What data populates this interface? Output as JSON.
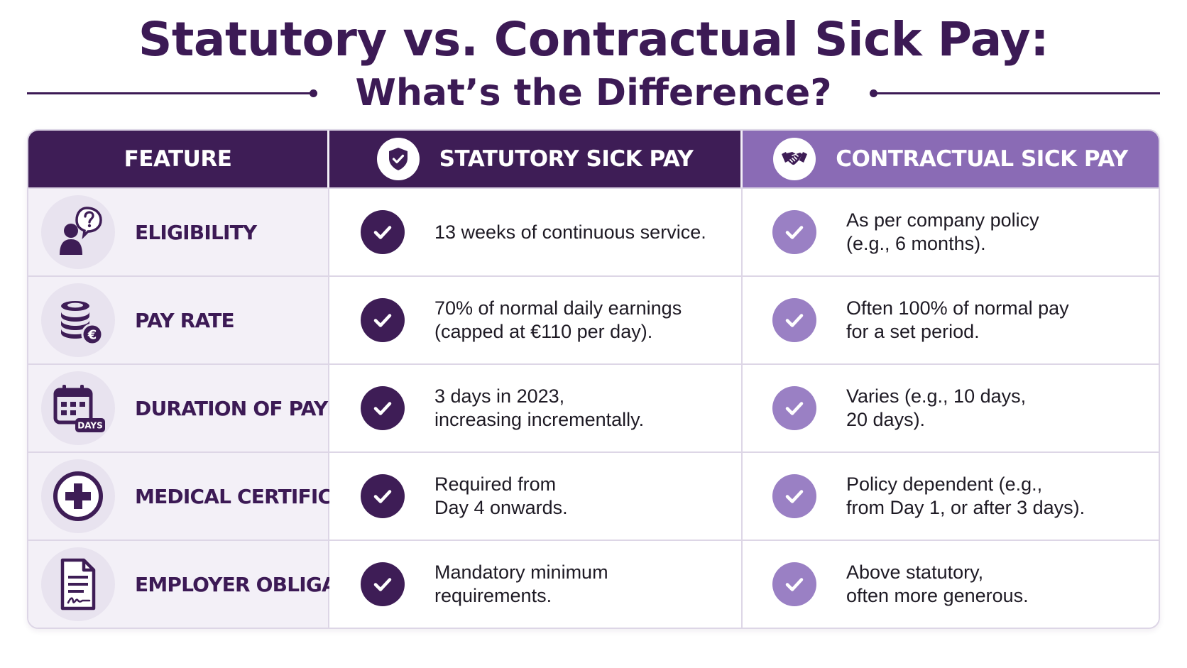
{
  "title": "Statutory vs. Contractual Sick Pay:",
  "subtitle": "What’s the Difference?",
  "headers": {
    "feature": "FEATURE",
    "statutory": "STATUTORY SICK PAY",
    "contractual": "CONTRACTUAL SICK PAY"
  },
  "header_icons": {
    "statutory": "shield-check-icon",
    "contractual": "handshake-icon"
  },
  "rows": [
    {
      "feature": "ELIGIBILITY",
      "icon": "person-question-icon",
      "statutory": "13 weeks of continuous service.",
      "contractual": "As per company policy\n(e.g., 6 months)."
    },
    {
      "feature": "PAY RATE",
      "icon": "coins-euro-icon",
      "statutory": "70% of normal daily earnings\n(capped at €110 per day).",
      "contractual": "Often 100% of normal pay\nfor a set period."
    },
    {
      "feature": "DURATION OF PAYMENT",
      "icon": "calendar-days-icon",
      "icon_label": "DAYS",
      "statutory": "3 days in 2023,\nincreasing incrementally.",
      "contractual": "Varies (e.g., 10 days,\n20 days)."
    },
    {
      "feature": "MEDICAL CERTIFICATE",
      "icon": "medical-cross-icon",
      "statutory": "Required from\nDay 4 onwards.",
      "contractual": "Policy dependent (e.g.,\nfrom Day 1, or after 3 days)."
    },
    {
      "feature": "EMPLOYER OBLIGATION",
      "icon": "signed-document-icon",
      "statutory": "Mandatory minimum\nrequirements.",
      "contractual": "Above statutory,\noften more generous."
    }
  ],
  "colors": {
    "primary": "#3e1d56",
    "secondary": "#8a6bb5",
    "check_light": "#9a80c4",
    "feature_bg": "#f3f0f7"
  }
}
